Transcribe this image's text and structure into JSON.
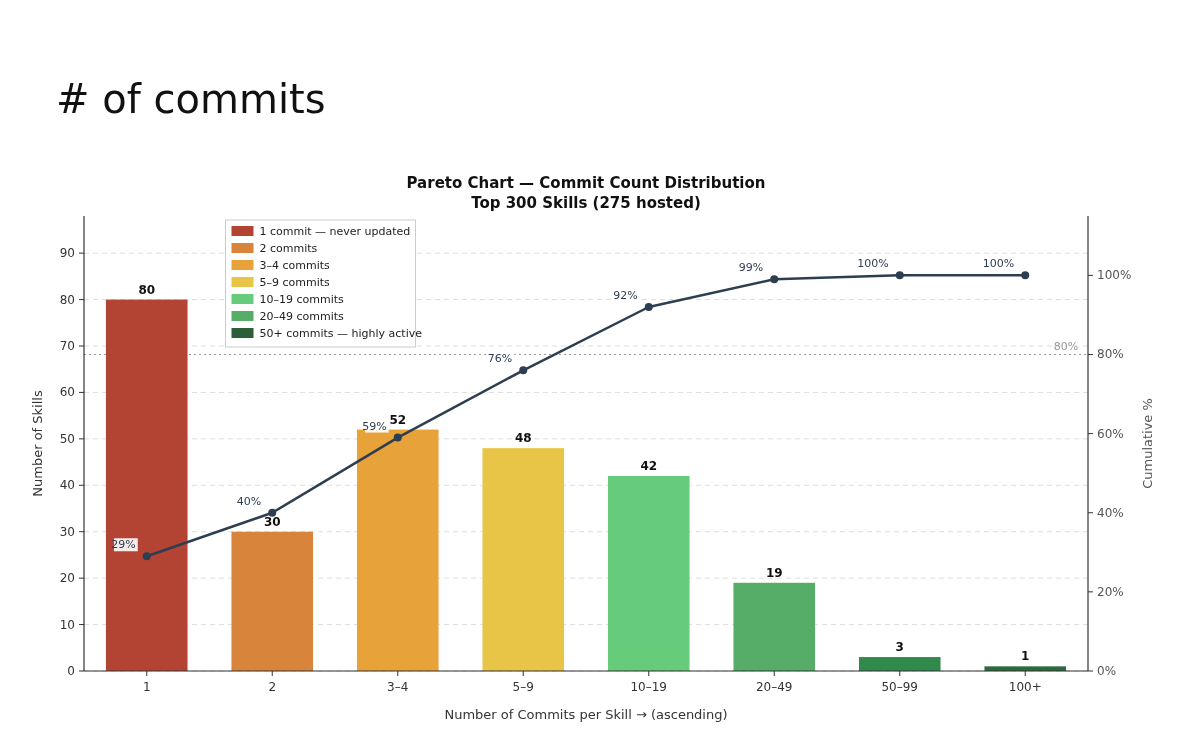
{
  "chart_data": {
    "type": "bar",
    "title": "Pareto Chart — Commit Count Distribution",
    "subtitle": "Top 300 Skills (275 hosted)",
    "annotations": [
      "# of commits"
    ],
    "xlabel": "Number of Commits per Skill → (ascending)",
    "ylabel": "Number of Skills",
    "y2label": "Cumulative %",
    "categories": [
      "1",
      "2",
      "3–4",
      "5–9",
      "10–19",
      "20–49",
      "50–99",
      "100+"
    ],
    "stacked": true,
    "series": [
      {
        "name": "1 commit — never updated",
        "color": "#b34434",
        "values": [
          80,
          null,
          null,
          null,
          null,
          null,
          null,
          null
        ]
      },
      {
        "name": "2 commits",
        "color": "#d8843a",
        "values": [
          null,
          30,
          null,
          null,
          null,
          null,
          null,
          null
        ]
      },
      {
        "name": "3–4 commits",
        "color": "#e8a23a",
        "values": [
          null,
          null,
          52,
          null,
          null,
          null,
          null,
          null
        ]
      },
      {
        "name": "5–9 commits",
        "color": "#e8c546",
        "values": [
          null,
          null,
          null,
          48,
          null,
          null,
          null,
          null
        ]
      },
      {
        "name": "10–19 commits",
        "color": "#66cb7a",
        "values": [
          null,
          null,
          null,
          null,
          42,
          null,
          null,
          null
        ]
      },
      {
        "name": "20–49 commits",
        "color": "#56ad68",
        "values": [
          null,
          null,
          null,
          null,
          null,
          19,
          null,
          null
        ]
      },
      {
        "name": "50+ commits — highly active",
        "color": "#2d5e3a",
        "colors": [
          null,
          null,
          null,
          null,
          null,
          null,
          "#2f8a4c",
          "#2a6a3c"
        ],
        "values": [
          null,
          null,
          null,
          null,
          null,
          null,
          3,
          1
        ]
      },
      {
        "type": "line",
        "axis": "y2",
        "color": "#2c3e50",
        "marker": "circle",
        "values": [
          29,
          40,
          59,
          76,
          92,
          99,
          100,
          100
        ],
        "value_labels": [
          "29%",
          "40%",
          "59%",
          "76%",
          "92%",
          "99%",
          "100%",
          "100%"
        ]
      }
    ],
    "data_labels": true,
    "ylim": [
      0,
      98
    ],
    "yticks": [
      0,
      10,
      20,
      30,
      40,
      50,
      60,
      70,
      80,
      90
    ],
    "y2lim": [
      0,
      115
    ],
    "y2ticks": [
      {
        "value": 0,
        "label": "0%"
      },
      {
        "value": 20,
        "label": "20%"
      },
      {
        "value": 40,
        "label": "40%"
      },
      {
        "value": 60,
        "label": "60%"
      },
      {
        "value": 80,
        "label": "80%"
      },
      {
        "value": 100,
        "label": "100%"
      }
    ],
    "ref_lines": [
      {
        "axis": "y2",
        "value": 80,
        "label": "80%",
        "color": "#999999",
        "line_style": "dotted"
      }
    ],
    "grid": "y",
    "legend": "top left"
  }
}
